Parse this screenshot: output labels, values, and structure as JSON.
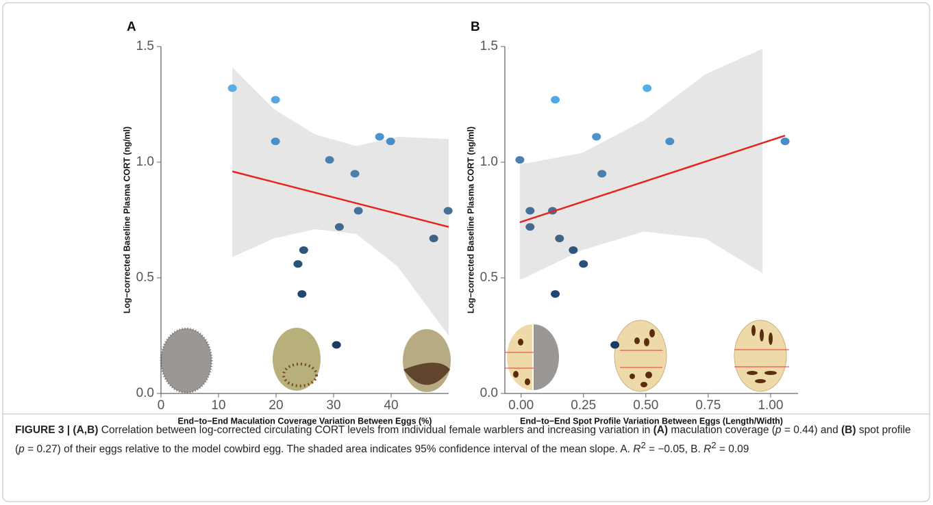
{
  "chart_data": [
    {
      "type": "scatter",
      "panel_label": "A",
      "x_label": "End−to−End Maculation Coverage Variation Between Eggs (%)",
      "y_label": "Log−corrected Baseline Plasma CORT (ng/ml)",
      "x": [
        12.4,
        19.9,
        19.9,
        29.3,
        33.7,
        38.0,
        39.9,
        34.3,
        31.0,
        49.9,
        47.4,
        24.8,
        23.8,
        24.5,
        30.5
      ],
      "y": [
        1.32,
        1.27,
        1.09,
        1.01,
        0.95,
        1.11,
        1.09,
        0.79,
        0.72,
        0.79,
        0.67,
        0.62,
        0.56,
        0.43,
        0.21
      ],
      "point_colors": [
        "#55aee8",
        "#52a8e4",
        "#4b8fc8",
        "#4a80b0",
        "#4a7fad",
        "#4b94d0",
        "#4a8dc6",
        "#45709a",
        "#426a90",
        "#476f98",
        "#3e6387",
        "#2f557c",
        "#28507a",
        "#1f4772",
        "#1a3c63"
      ],
      "fit": {
        "color": "#e8221c",
        "x": [
          12.4,
          50
        ],
        "y": [
          0.96,
          0.72
        ]
      },
      "band": {
        "color": "#e6e6e6",
        "x": [
          12.4,
          19.6,
          26.8,
          33.9,
          41.1,
          50
        ],
        "upper": [
          1.41,
          1.23,
          1.12,
          1.07,
          1.11,
          1.1
        ],
        "lower": [
          0.59,
          0.67,
          0.71,
          0.69,
          0.55,
          0.25
        ]
      },
      "xlim": [
        0,
        50
      ],
      "ylim": [
        0,
        1.5
      ],
      "xticks": [
        0,
        10,
        20,
        30,
        40
      ],
      "yticks": [
        {
          "value": 0,
          "label": "0.0"
        },
        0.5,
        {
          "value": 1,
          "label": "1.0"
        },
        1.5
      ]
    },
    {
      "type": "scatter",
      "panel_label": "B",
      "x_label": "End−to−End Spot Profile Variation Between Eggs (Length/Width)",
      "y_label": "Log−corrected Baseline Plasma CORT (ng/ml)",
      "x": [
        -0.005,
        0.036,
        0.036,
        0.126,
        0.137,
        0.154,
        0.209,
        0.25,
        0.137,
        0.302,
        0.324,
        0.505,
        0.596,
        1.058,
        0.376
      ],
      "y": [
        1.01,
        0.79,
        0.72,
        0.79,
        1.27,
        0.67,
        0.62,
        0.56,
        0.43,
        1.11,
        0.95,
        1.32,
        1.09,
        1.09,
        0.21
      ],
      "point_colors": [
        "#4a80b0",
        "#45709a",
        "#426a90",
        "#476f98",
        "#52a8e4",
        "#3e6387",
        "#2f557c",
        "#28507a",
        "#1f4772",
        "#4b94d0",
        "#4a7fad",
        "#55aee8",
        "#4b8fc8",
        "#4a8dc6",
        "#1a3c63"
      ],
      "fit": {
        "color": "#e8221c",
        "x": [
          -0.005,
          1.058
        ],
        "y": [
          0.74,
          1.115
        ]
      },
      "band": {
        "color": "#e6e6e6",
        "x": [
          -0.005,
          0.245,
          0.492,
          0.739,
          0.967
        ],
        "upper": [
          0.99,
          1.04,
          1.18,
          1.38,
          1.49
        ],
        "lower": [
          0.49,
          0.62,
          0.7,
          0.67,
          0.52
        ]
      },
      "xlim": [
        -0.065,
        1.11
      ],
      "ylim": [
        0,
        1.5
      ],
      "xticks": [
        {
          "value": 0,
          "label": "0.00"
        },
        {
          "value": 0.25,
          "label": "0.25"
        },
        {
          "value": 0.5,
          "label": "0.50"
        },
        {
          "value": 0.75,
          "label": "0.75"
        },
        {
          "value": 1,
          "label": "1.00"
        }
      ],
      "yticks": [
        {
          "value": 0,
          "label": "0.0"
        },
        0.5,
        {
          "value": 1,
          "label": "1.0"
        },
        1.5
      ]
    }
  ],
  "caption": [
    "FIGURE 3 | (A,B)",
    " Correlation between log-corrected circulating CORT levels from individual female warblers and increasing variation in ",
    "(A)",
    " maculation coverage (",
    "p",
    " = 0.44) and ",
    "(B)",
    " spot profile (",
    "p",
    " = 0.27) of their eggs relative to the model cowbird egg. The shaded area indicates 95% confidence interval of the mean slope. A. ",
    "R",
    "2",
    " = −0.05, B. ",
    "R",
    "2",
    " = 0.09"
  ]
}
